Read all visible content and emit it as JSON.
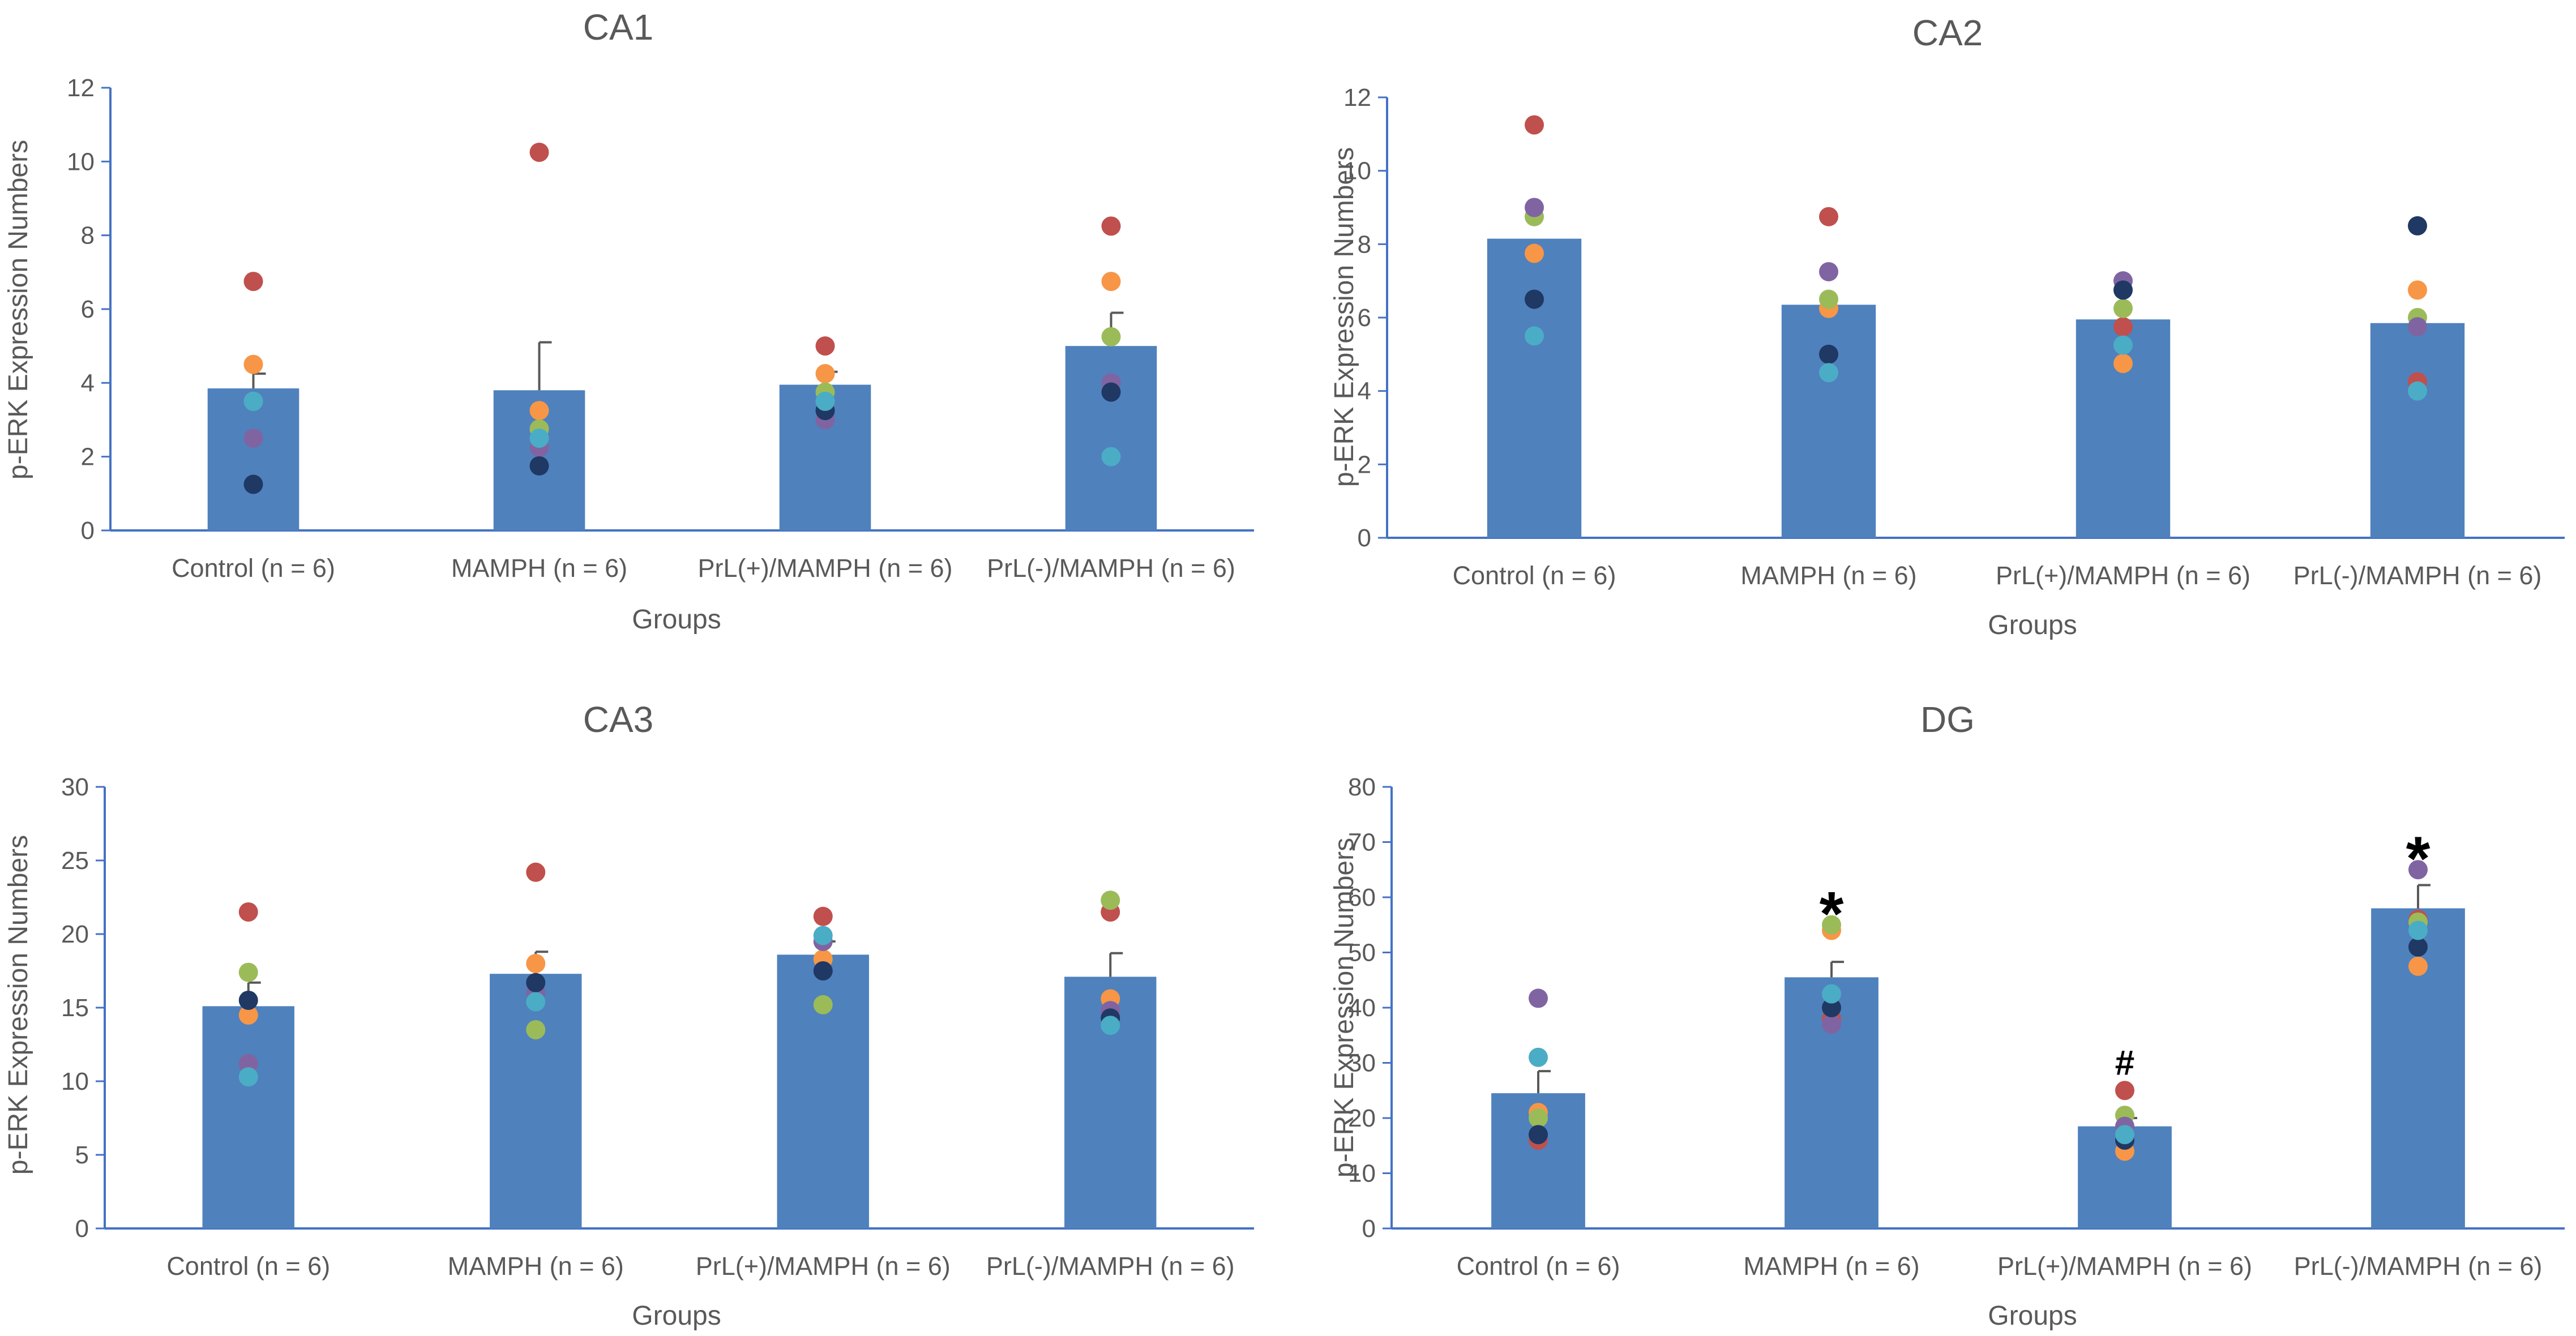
{
  "chart_data": [
    {
      "type": "bar",
      "title": "CA1",
      "xlabel": "Groups",
      "ylabel": "p-ERK Expression Numbers",
      "ylim": [
        0,
        12
      ],
      "yticks": [
        0,
        2,
        4,
        6,
        8,
        10,
        12
      ],
      "categories": [
        "Control (n = 6)",
        "MAMPH (n = 6)",
        "PrL(+)/MAMPH (n = 6)",
        "PrL(-)/MAMPH (n = 6)"
      ],
      "values": [
        3.85,
        3.8,
        3.95,
        5.0
      ],
      "errors": [
        0.4,
        1.3,
        0.35,
        0.9
      ],
      "annotations": [
        "",
        "",
        "",
        ""
      ],
      "points": [
        [
          6.75,
          4.5,
          3.5,
          2.5,
          1.25,
          3.5
        ],
        [
          10.25,
          3.25,
          2.75,
          2.25,
          1.75,
          2.5
        ],
        [
          5.0,
          4.25,
          3.75,
          3.0,
          3.25,
          3.5
        ],
        [
          8.25,
          6.75,
          5.25,
          4.0,
          3.75,
          2.0
        ]
      ]
    },
    {
      "type": "bar",
      "title": "CA2",
      "xlabel": "Groups",
      "ylabel": "p-ERK Expression Numbers",
      "ylim": [
        0,
        12
      ],
      "yticks": [
        0,
        2,
        4,
        6,
        8,
        10,
        12
      ],
      "categories": [
        "Control (n = 6)",
        "MAMPH (n = 6)",
        "PrL(+)/MAMPH (n = 6)",
        "PrL(-)/MAMPH (n = 6)"
      ],
      "values": [
        8.15,
        6.35,
        5.95,
        5.85
      ],
      "errors": [
        0,
        0,
        0,
        0
      ],
      "annotations": [
        "",
        "",
        "",
        ""
      ],
      "points": [
        [
          11.25,
          7.75,
          8.75,
          9.0,
          6.5,
          5.5
        ],
        [
          8.75,
          6.25,
          6.5,
          7.25,
          5.0,
          4.5
        ],
        [
          5.75,
          4.75,
          6.25,
          7.0,
          6.75,
          5.25
        ],
        [
          4.25,
          6.75,
          6.0,
          5.75,
          8.5,
          4.0
        ]
      ]
    },
    {
      "type": "bar",
      "title": "CA3",
      "xlabel": "Groups",
      "ylabel": "p-ERK Expression Numbers",
      "ylim": [
        0,
        30
      ],
      "yticks": [
        0,
        5,
        10,
        15,
        20,
        25,
        30
      ],
      "categories": [
        "Control (n = 6)",
        "MAMPH (n = 6)",
        "PrL(+)/MAMPH (n = 6)",
        "PrL(-)/MAMPH (n = 6)"
      ],
      "values": [
        15.1,
        17.3,
        18.6,
        17.1
      ],
      "errors": [
        1.6,
        1.5,
        0.9,
        1.6
      ],
      "annotations": [
        "",
        "",
        "",
        ""
      ],
      "points": [
        [
          21.5,
          14.5,
          17.4,
          11.2,
          15.5,
          10.3
        ],
        [
          24.2,
          18.0,
          13.5,
          16.0,
          16.7,
          15.4
        ],
        [
          21.2,
          18.3,
          15.2,
          19.5,
          17.5,
          19.9
        ],
        [
          21.5,
          15.6,
          22.3,
          14.8,
          14.3,
          13.8
        ]
      ]
    },
    {
      "type": "bar",
      "title": "DG",
      "xlabel": "Groups",
      "ylabel": "p-ERK Expression Numbers",
      "ylim": [
        0,
        80
      ],
      "yticks": [
        0,
        10,
        20,
        30,
        40,
        50,
        60,
        70,
        80
      ],
      "categories": [
        "Control (n = 6)",
        "MAMPH (n = 6)",
        "PrL(+)/MAMPH (n = 6)",
        "PrL(-)/MAMPH (n = 6)"
      ],
      "values": [
        24.5,
        45.5,
        18.5,
        58.0
      ],
      "errors": [
        4.0,
        2.8,
        1.5,
        4.2
      ],
      "annotations": [
        "",
        "*",
        "#",
        "*"
      ],
      "points": [
        [
          16.0,
          21.0,
          20.0,
          41.7,
          17.0,
          31.0
        ],
        [
          38.0,
          54.0,
          55.0,
          37.0,
          40.0,
          42.5
        ],
        [
          25.0,
          14.0,
          20.5,
          18.5,
          16.0,
          17.0
        ],
        [
          56.0,
          47.5,
          55.5,
          65.0,
          51.0,
          54.0
        ]
      ]
    }
  ],
  "colors": {
    "bar": "#4f81bd",
    "axis": "#4472c4",
    "text": "#595959",
    "points": [
      "#c0504d",
      "#f79646",
      "#9bbb59",
      "#8064a2",
      "#1f3864",
      "#4bacc6"
    ]
  }
}
